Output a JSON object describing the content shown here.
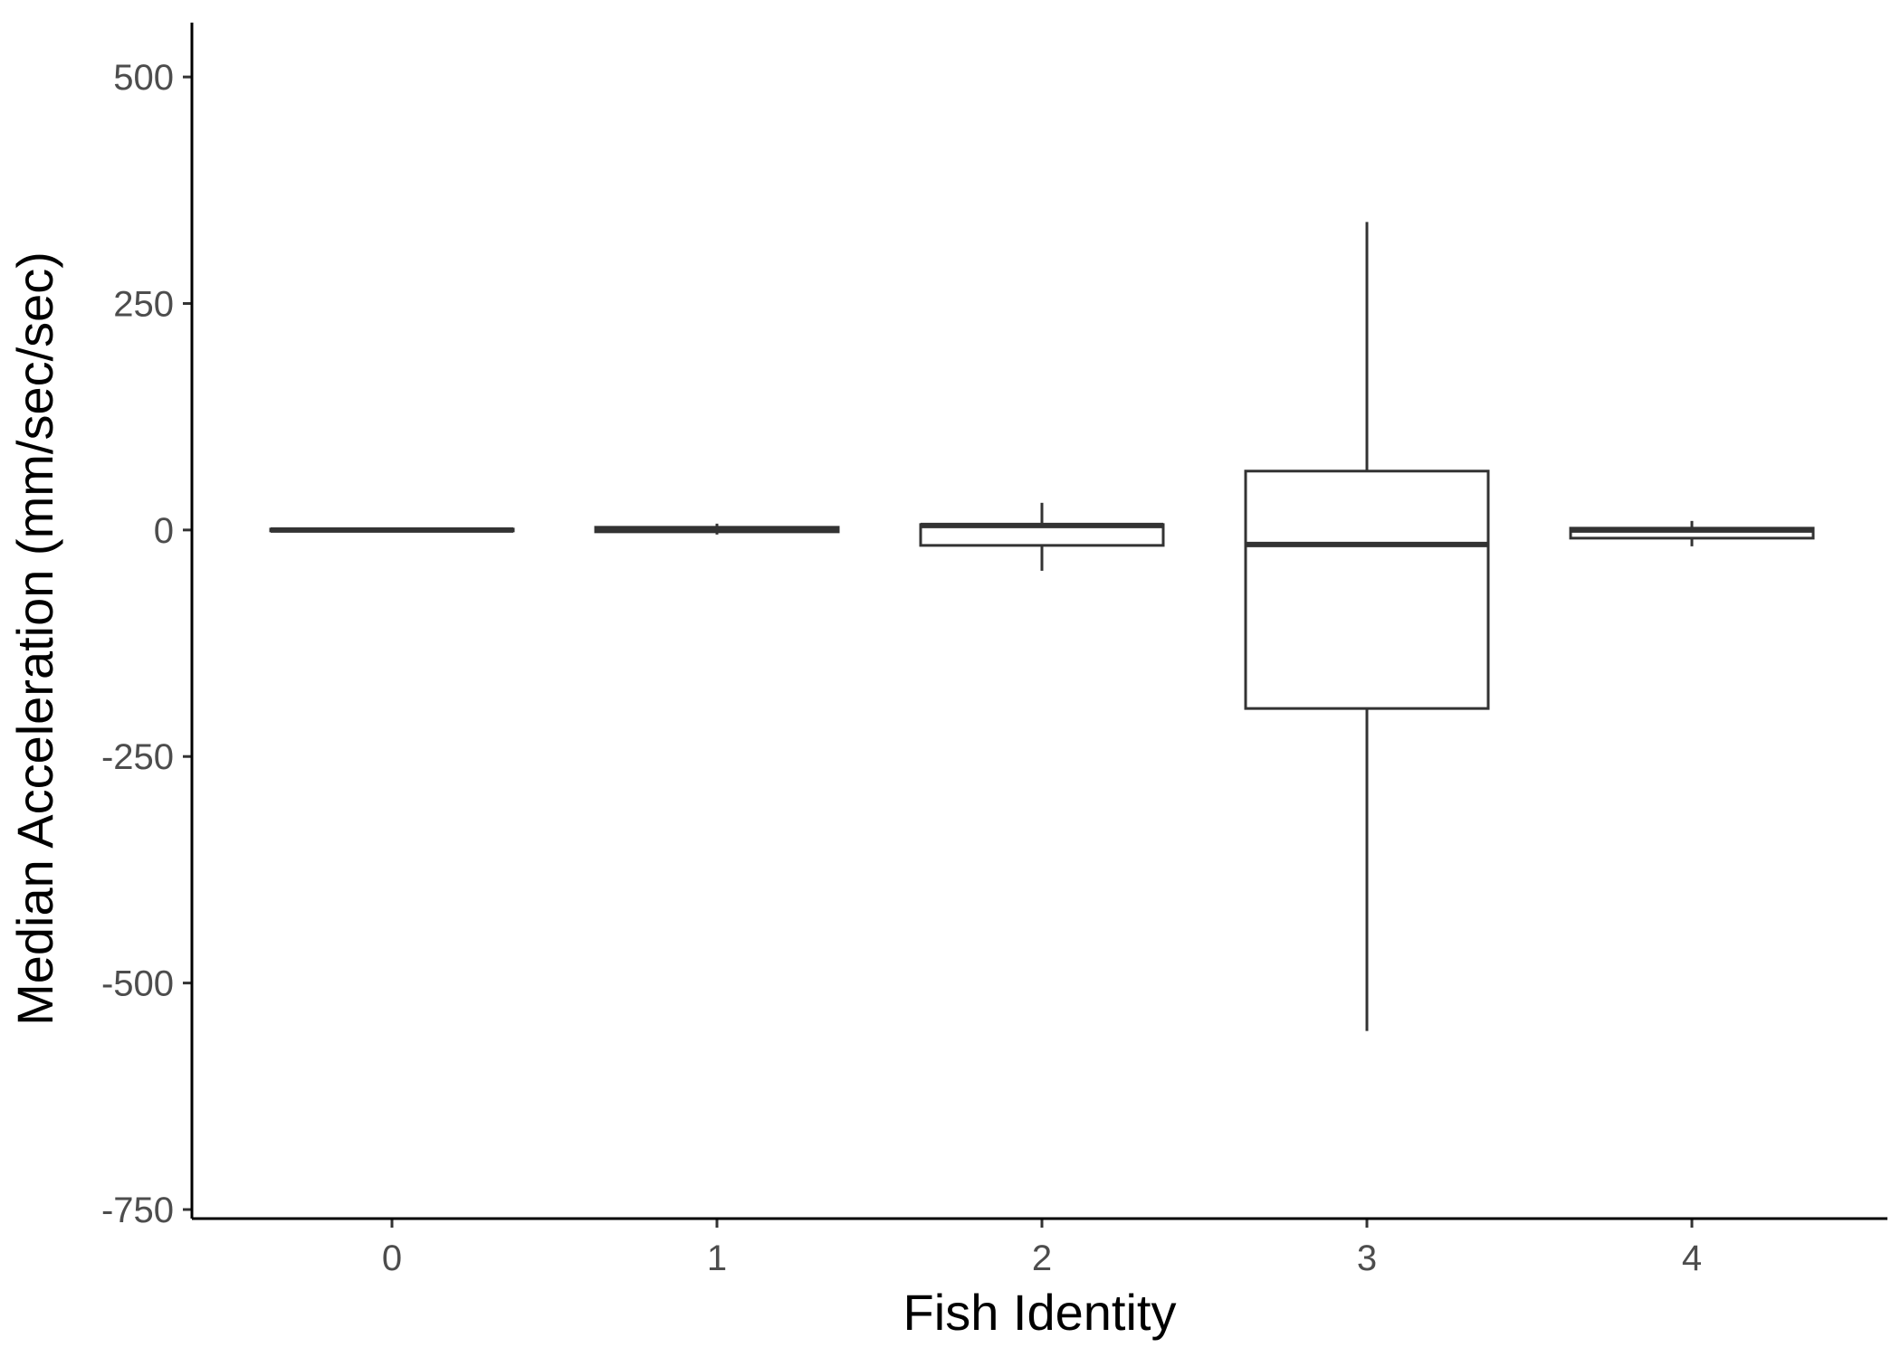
{
  "chart_data": {
    "type": "boxplot",
    "title": "",
    "xlabel": "Fish Identity",
    "ylabel": "Median Acceleration (mm/sec/sec)",
    "ylim": [
      -760,
      560
    ],
    "yticks": [
      500,
      250,
      0,
      -250,
      -500,
      -750
    ],
    "ytick_labels": [
      "500",
      "250",
      "0",
      "-250",
      "-500",
      "-750"
    ],
    "categories": [
      "0",
      "1",
      "2",
      "3",
      "4"
    ],
    "boxes": [
      {
        "category": "0",
        "whisker_low": -1,
        "q1": -1,
        "median": 0,
        "q3": 1,
        "whisker_high": 1
      },
      {
        "category": "1",
        "whisker_low": -5,
        "q1": -2,
        "median": 0,
        "q3": 3,
        "whisker_high": 7
      },
      {
        "category": "2",
        "whisker_low": -45,
        "q1": -17,
        "median": 5,
        "q3": 6,
        "whisker_high": 30
      },
      {
        "category": "3",
        "whisker_low": -553,
        "q1": -197,
        "median": -16,
        "q3": 65,
        "whisker_high": 340
      },
      {
        "category": "4",
        "whisker_low": -18,
        "q1": -9,
        "median": 0,
        "q3": 2,
        "whisker_high": 10
      }
    ],
    "grid": false,
    "legend": "none",
    "colors": {
      "box_stroke": "#333333",
      "box_fill": "#ffffff",
      "axis": "#000000",
      "tick_text": "#4d4d4d",
      "title_text": "#000000"
    }
  }
}
